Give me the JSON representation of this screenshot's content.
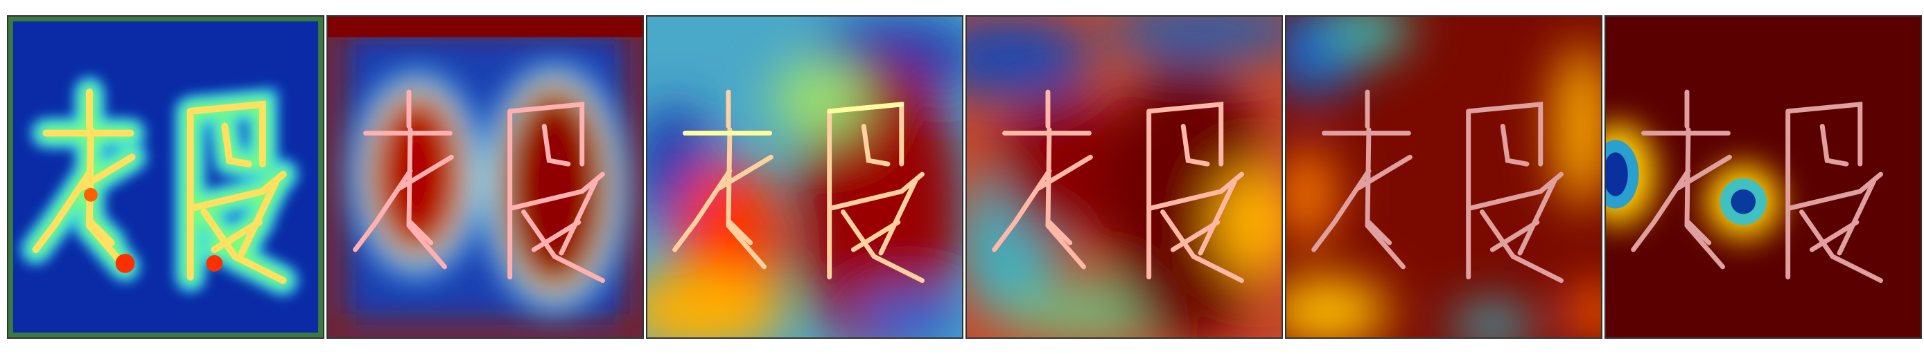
{
  "figure": {
    "description_visible_text": "",
    "panels": [
      {
        "id": "map-1",
        "style": "narrow-attention",
        "background": "#0a2aa6"
      },
      {
        "id": "map-2",
        "style": "region-attention",
        "background": "#1b3fb0"
      },
      {
        "id": "map-3",
        "style": "broad-attention",
        "background": "#4aa8c9"
      },
      {
        "id": "map-4",
        "style": "broad-attention",
        "background": "#c6482a"
      },
      {
        "id": "map-5",
        "style": "near-global-attention",
        "background": "#7a0a00"
      },
      {
        "id": "map-6",
        "style": "global-attention",
        "background": "#5a0000"
      }
    ],
    "colormap": [
      "#00007f",
      "#0050ff",
      "#00d0ff",
      "#7dff7a",
      "#ffd000",
      "#ff3000",
      "#7f0000"
    ]
  }
}
